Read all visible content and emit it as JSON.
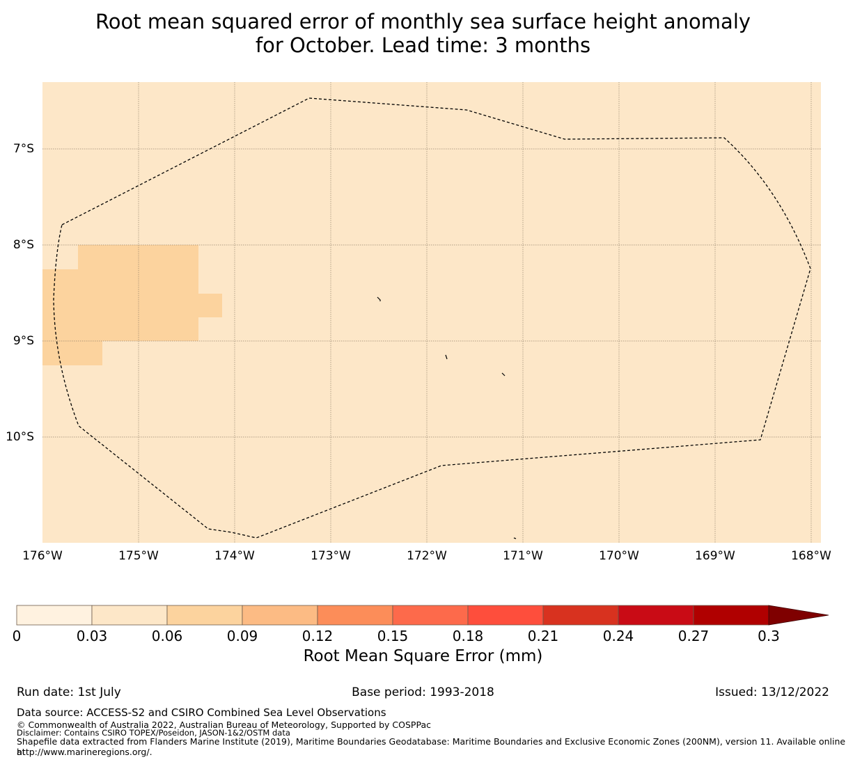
{
  "title": {
    "line1": "Root mean squared error of monthly sea surface height anomaly",
    "line2": "for October. Lead time: 3 months"
  },
  "map": {
    "background_color": "#fde7c8",
    "cell_color": "#fcd39e",
    "lat_labels": [
      "7°S",
      "8°S",
      "9°S",
      "10°S"
    ],
    "lon_labels": [
      "176°W",
      "175°W",
      "174°W",
      "173°W",
      "172°W",
      "171°W",
      "170°W",
      "169°W",
      "168°W"
    ],
    "gridline_color": "#8a7a66",
    "eez_boundary_style": "dashed black"
  },
  "colorbar": {
    "label": "Root Mean Square Error (mm)",
    "ticks": [
      "0",
      "0.03",
      "0.06",
      "0.09",
      "0.12",
      "0.15",
      "0.18",
      "0.21",
      "0.24",
      "0.27",
      "0.3"
    ],
    "colors": [
      "#fff2e0",
      "#fde7c8",
      "#fcd39e",
      "#fcbb84",
      "#fc8d59",
      "#fd6a4b",
      "#fe4e3c",
      "#d8321f",
      "#c90b15",
      "#b00000",
      "#7f0000"
    ],
    "extend": "max"
  },
  "footer": {
    "run_date": "Run date: 1st July",
    "base_period": "Base period: 1993-2018",
    "issued": "Issued: 13/12/2022",
    "data_source": "Data source: ACCESS-S2 and CSIRO Combined Sea Level Observations",
    "copyright": "© Commonwealth of Australia 2022, Australian Bureau of Meteorology, Supported by COSPPac",
    "disclaimer": "Disclaimer: Contains CSIRO TOPEX/Poseidon, JASON-1&2/OSTM data",
    "shapefile_line1": "Shapefile data extracted from Flanders Marine Institute (2019), Maritime Boundaries Geodatabase: Maritime Boundaries and Exclusive Economic Zones (200NM), version 11. Available online at",
    "shapefile_line2": "http://www.marineregions.org/."
  }
}
